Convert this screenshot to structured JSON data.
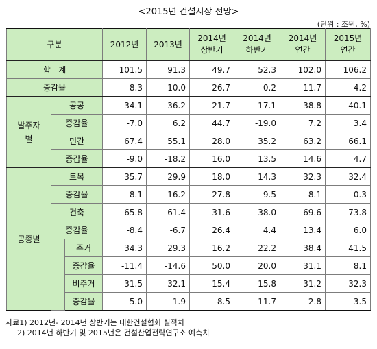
{
  "title": "<2015년 건설시장 전망>",
  "unit": "(단위 : 조원, %)",
  "header": {
    "category": "구분",
    "columns": [
      "2012년",
      "2013년",
      "2014년\n상반기",
      "2014년\n하반기",
      "2014년\n연간",
      "2015년\n연간"
    ]
  },
  "rows": {
    "total": {
      "label": "합   계",
      "values": [
        "101.5",
        "91.3",
        "49.7",
        "52.3",
        "102.0",
        "106.2"
      ]
    },
    "total_rate": {
      "label": "증감율",
      "values": [
        "-8.3",
        "-10.0",
        "26.7",
        "0.2",
        "11.7",
        "4.2"
      ]
    },
    "by_client": {
      "group_label": "발주자\n별",
      "public": {
        "label": "공공",
        "values": [
          "34.1",
          "36.2",
          "21.7",
          "17.1",
          "38.8",
          "40.1"
        ]
      },
      "public_rate": {
        "label": "증감율",
        "values": [
          "-7.0",
          "6.2",
          "44.7",
          "-19.0",
          "7.2",
          "3.4"
        ]
      },
      "private": {
        "label": "민간",
        "values": [
          "67.4",
          "55.1",
          "28.0",
          "35.2",
          "63.2",
          "66.1"
        ]
      },
      "private_rate": {
        "label": "증감율",
        "values": [
          "-9.0",
          "-18.2",
          "16.0",
          "13.5",
          "14.6",
          "4.7"
        ]
      }
    },
    "by_type": {
      "group_label": "공종별",
      "civil": {
        "label": "토목",
        "values": [
          "35.7",
          "29.9",
          "18.0",
          "14.3",
          "32.3",
          "32.4"
        ]
      },
      "civil_rate": {
        "label": "증감율",
        "values": [
          "-8.1",
          "-16.2",
          "27.8",
          "-9.5",
          "8.1",
          "0.3"
        ]
      },
      "building": {
        "label": "건축",
        "values": [
          "65.8",
          "61.4",
          "31.6",
          "38.0",
          "69.6",
          "73.8"
        ]
      },
      "building_rate": {
        "label": "증감율",
        "values": [
          "-8.4",
          "-6.7",
          "26.4",
          "4.4",
          "13.4",
          "6.0"
        ]
      },
      "housing": {
        "label": "주거",
        "values": [
          "34.3",
          "29.3",
          "16.2",
          "22.2",
          "38.4",
          "41.5"
        ]
      },
      "housing_rate": {
        "label": "증감율",
        "values": [
          "-11.4",
          "-14.6",
          "50.0",
          "20.0",
          "31.1",
          "8.1"
        ]
      },
      "non_housing": {
        "label": "비주거",
        "values": [
          "31.5",
          "32.1",
          "15.4",
          "15.8",
          "31.2",
          "32.3"
        ]
      },
      "non_housing_rate": {
        "label": "증감율",
        "values": [
          "-5.0",
          "1.9",
          "8.5",
          "-11.7",
          "-2.8",
          "3.5"
        ]
      }
    }
  },
  "notes": [
    "자료1) 2012년- 2014년 상반기는 대한건설협회 실적치",
    "2) 2014년 하반기 및  2015년은 건설산업전략연구소 예측치"
  ]
}
